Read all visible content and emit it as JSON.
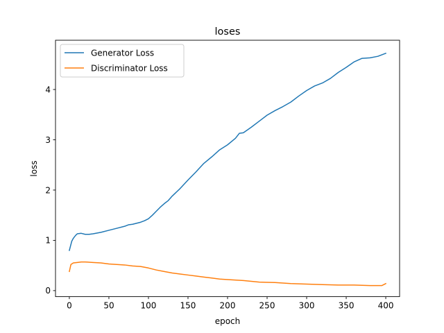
{
  "chart_data": {
    "type": "line",
    "title": "loses",
    "xlabel": "epoch",
    "ylabel": "loss",
    "xlim": [
      -17.5,
      417.5
    ],
    "ylim": [
      -0.12,
      4.98
    ],
    "grid": false,
    "legend_position": "top-left",
    "x_ticks": [
      0,
      50,
      100,
      150,
      200,
      250,
      300,
      350,
      400
    ],
    "x_tick_labels": [
      "0",
      "50",
      "100",
      "150",
      "200",
      "250",
      "300",
      "350",
      "400"
    ],
    "y_ticks": [
      0,
      1,
      2,
      3,
      4
    ],
    "y_tick_labels": [
      "0",
      "1",
      "2",
      "3",
      "4"
    ],
    "series": [
      {
        "name": "Generator Loss",
        "color": "#1f77b4",
        "x": [
          0,
          3,
          5,
          8,
          10,
          15,
          20,
          25,
          30,
          40,
          50,
          60,
          70,
          75,
          80,
          90,
          95,
          100,
          105,
          110,
          115,
          120,
          125,
          130,
          140,
          150,
          160,
          170,
          180,
          190,
          200,
          210,
          215,
          220,
          230,
          240,
          250,
          260,
          270,
          280,
          290,
          300,
          310,
          320,
          330,
          340,
          350,
          360,
          370,
          380,
          390,
          400
        ],
        "y": [
          0.8,
          0.98,
          1.04,
          1.1,
          1.13,
          1.14,
          1.12,
          1.12,
          1.13,
          1.16,
          1.2,
          1.24,
          1.28,
          1.31,
          1.32,
          1.36,
          1.39,
          1.43,
          1.5,
          1.58,
          1.66,
          1.73,
          1.79,
          1.88,
          2.03,
          2.2,
          2.36,
          2.53,
          2.66,
          2.8,
          2.9,
          3.03,
          3.13,
          3.14,
          3.25,
          3.37,
          3.49,
          3.58,
          3.66,
          3.75,
          3.87,
          3.98,
          4.07,
          4.13,
          4.22,
          4.34,
          4.44,
          4.55,
          4.62,
          4.63,
          4.66,
          4.72
        ]
      },
      {
        "name": "Discriminator Loss",
        "color": "#ff7f0e",
        "x": [
          0,
          2,
          5,
          10,
          15,
          20,
          30,
          40,
          50,
          60,
          70,
          80,
          90,
          100,
          110,
          120,
          130,
          140,
          150,
          160,
          170,
          180,
          190,
          200,
          220,
          240,
          260,
          280,
          300,
          320,
          340,
          360,
          380,
          395,
          400
        ],
        "y": [
          0.38,
          0.52,
          0.55,
          0.56,
          0.57,
          0.57,
          0.56,
          0.55,
          0.53,
          0.52,
          0.51,
          0.49,
          0.48,
          0.45,
          0.41,
          0.38,
          0.35,
          0.33,
          0.31,
          0.29,
          0.27,
          0.25,
          0.23,
          0.22,
          0.2,
          0.17,
          0.16,
          0.14,
          0.13,
          0.12,
          0.11,
          0.11,
          0.1,
          0.1,
          0.14
        ]
      }
    ]
  }
}
